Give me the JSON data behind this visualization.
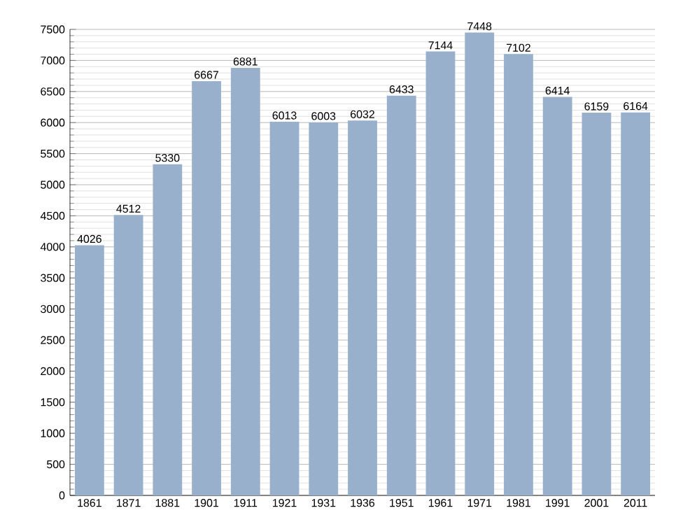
{
  "chart_data": {
    "type": "bar",
    "categories": [
      "1861",
      "1871",
      "1881",
      "1901",
      "1911",
      "1921",
      "1931",
      "1936",
      "1951",
      "1961",
      "1971",
      "1981",
      "1991",
      "2001",
      "2011"
    ],
    "values": [
      4026,
      4512,
      5330,
      6667,
      6881,
      6013,
      6003,
      6032,
      6433,
      7144,
      7448,
      7102,
      6414,
      6159,
      6164
    ],
    "color": "#98b0cb",
    "ylim": [
      0,
      7500
    ],
    "yticks": [
      0,
      500,
      1000,
      1500,
      2000,
      2500,
      3000,
      3500,
      4000,
      4500,
      5000,
      5500,
      6000,
      6500,
      7000,
      7500
    ],
    "grid": "y",
    "data_labels": true
  }
}
